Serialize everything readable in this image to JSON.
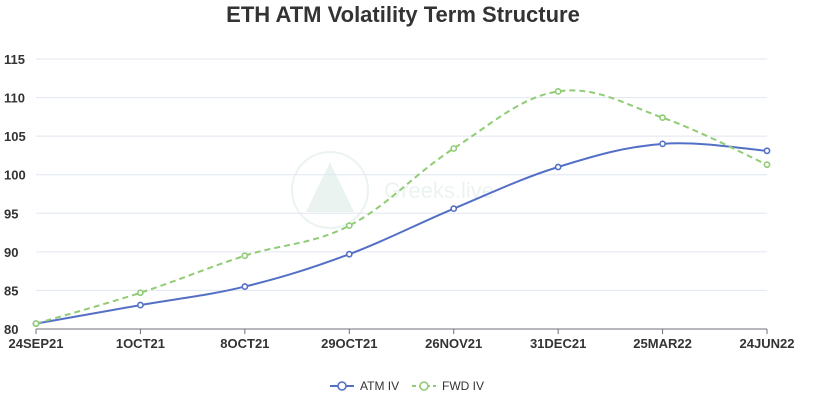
{
  "chart_data": {
    "type": "line",
    "title": "ETH ATM Volatility Term Structure",
    "categories": [
      "24SEP21",
      "1OCT21",
      "8OCT21",
      "29OCT21",
      "26NOV21",
      "31DEC21",
      "25MAR22",
      "24JUN22"
    ],
    "ylim": [
      80,
      115
    ],
    "yticks": [
      80,
      85,
      90,
      95,
      100,
      105,
      110,
      115
    ],
    "grid": true,
    "legend_position": "bottom",
    "series": [
      {
        "name": "ATM IV",
        "color": "#5470c6",
        "dashed": false,
        "values": [
          80.7,
          83.1,
          85.5,
          89.7,
          95.6,
          101.0,
          104.0,
          103.1
        ]
      },
      {
        "name": "FWD IV",
        "color": "#91cc75",
        "dashed": true,
        "values": [
          80.7,
          84.7,
          89.5,
          93.4,
          103.4,
          110.8,
          107.4,
          101.3
        ]
      }
    ],
    "watermark": "Greeks.live"
  }
}
